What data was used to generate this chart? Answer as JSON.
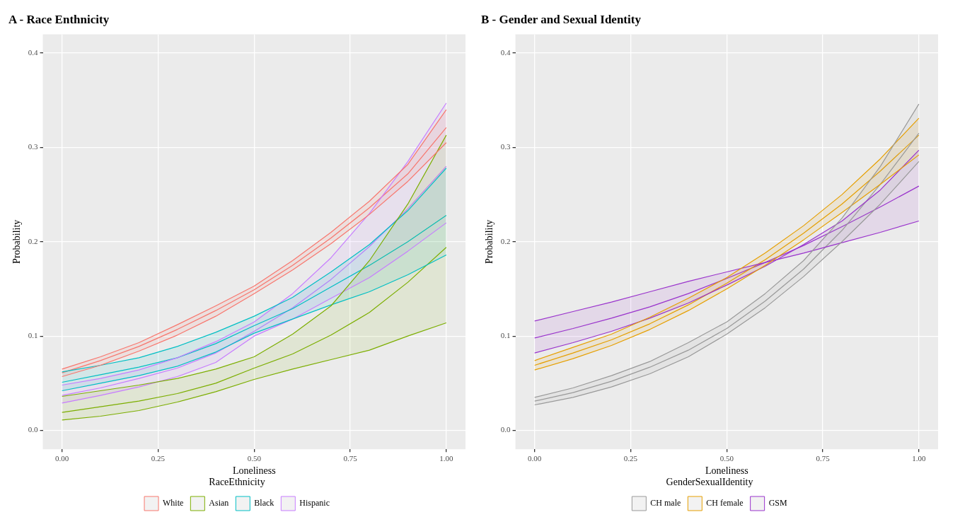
{
  "chart_data": [
    {
      "type": "line",
      "title": "A - Race Enthnicity",
      "xlabel": "Loneliness",
      "ylabel": "Probability",
      "legend_title": "RaceEthnicity",
      "legend": "bottom",
      "grid": true,
      "marker": "none",
      "line_style": "solid",
      "x": [
        0,
        0.1,
        0.2,
        0.3,
        0.4,
        0.5,
        0.6,
        0.7,
        0.8,
        0.9,
        1.0
      ],
      "xlim": [
        -0.05,
        1.05
      ],
      "xticks": [
        {
          "value": 0,
          "label": "0.00"
        },
        {
          "value": 0.25,
          "label": "0.25"
        },
        {
          "value": 0.5,
          "label": "0.50"
        },
        {
          "value": 0.75,
          "label": "0.75"
        },
        {
          "value": 1,
          "label": "1.00"
        }
      ],
      "ylim": [
        -0.02,
        0.42
      ],
      "yticks": [
        {
          "value": 0,
          "label": "0.0"
        },
        {
          "value": 0.1,
          "label": "0.1"
        },
        {
          "value": 0.2,
          "label": "0.2"
        },
        {
          "value": 0.3,
          "label": "0.3"
        },
        {
          "value": 0.4,
          "label": "0.4"
        }
      ],
      "series": [
        {
          "color": "#f8766d",
          "values": [
            0.057,
            0.069,
            0.084,
            0.101,
            0.121,
            0.145,
            0.17,
            0.198,
            0.229,
            0.264,
            0.305
          ]
        },
        {
          "color": "#f8766d",
          "values": [
            0.065,
            0.078,
            0.093,
            0.112,
            0.132,
            0.153,
            0.18,
            0.21,
            0.243,
            0.282,
            0.34
          ]
        },
        {
          "color": "#7cae00",
          "values": [
            0.011,
            0.015,
            0.021,
            0.03,
            0.041,
            0.054,
            0.065,
            0.075,
            0.085,
            0.1,
            0.114
          ]
        },
        {
          "color": "#7cae00",
          "values": [
            0.036,
            0.042,
            0.048,
            0.055,
            0.065,
            0.078,
            0.102,
            0.132,
            0.18,
            0.24,
            0.313
          ]
        },
        {
          "color": "#00bfc4",
          "values": [
            0.042,
            0.05,
            0.058,
            0.068,
            0.083,
            0.103,
            0.118,
            0.133,
            0.147,
            0.165,
            0.186
          ]
        },
        {
          "color": "#00bfc4",
          "values": [
            0.062,
            0.069,
            0.077,
            0.089,
            0.104,
            0.121,
            0.141,
            0.168,
            0.197,
            0.233,
            0.278
          ]
        },
        {
          "color": "#c77cff",
          "values": [
            0.029,
            0.037,
            0.046,
            0.057,
            0.072,
            0.1,
            0.118,
            0.14,
            0.162,
            0.19,
            0.22
          ]
        },
        {
          "color": "#c77cff",
          "values": [
            0.048,
            0.055,
            0.064,
            0.077,
            0.094,
            0.115,
            0.145,
            0.183,
            0.23,
            0.285,
            0.347
          ]
        },
        {
          "name": "White",
          "color": "#f8766d",
          "values": [
            0.061,
            0.074,
            0.089,
            0.107,
            0.127,
            0.149,
            0.175,
            0.204,
            0.236,
            0.272,
            0.321
          ],
          "lower": [
            0.057,
            0.069,
            0.084,
            0.101,
            0.121,
            0.145,
            0.17,
            0.198,
            0.229,
            0.264,
            0.305
          ],
          "upper": [
            0.065,
            0.078,
            0.093,
            0.112,
            0.132,
            0.153,
            0.18,
            0.21,
            0.243,
            0.282,
            0.34
          ]
        },
        {
          "name": "Asian",
          "color": "#7cae00",
          "values": [
            0.019,
            0.025,
            0.031,
            0.039,
            0.05,
            0.066,
            0.081,
            0.101,
            0.125,
            0.157,
            0.194
          ],
          "lower": [
            0.011,
            0.015,
            0.021,
            0.03,
            0.041,
            0.054,
            0.065,
            0.075,
            0.085,
            0.1,
            0.114
          ],
          "upper": [
            0.036,
            0.042,
            0.048,
            0.055,
            0.065,
            0.078,
            0.102,
            0.132,
            0.18,
            0.24,
            0.313
          ]
        },
        {
          "name": "Black",
          "color": "#00bfc4",
          "values": [
            0.051,
            0.059,
            0.067,
            0.077,
            0.092,
            0.111,
            0.129,
            0.152,
            0.175,
            0.2,
            0.228
          ],
          "lower": [
            0.042,
            0.05,
            0.058,
            0.068,
            0.083,
            0.103,
            0.118,
            0.133,
            0.147,
            0.165,
            0.186
          ],
          "upper": [
            0.062,
            0.069,
            0.077,
            0.089,
            0.104,
            0.121,
            0.141,
            0.168,
            0.197,
            0.233,
            0.278
          ]
        },
        {
          "name": "Hispanic",
          "color": "#c77cff",
          "values": [
            0.037,
            0.045,
            0.055,
            0.066,
            0.082,
            0.105,
            0.13,
            0.16,
            0.195,
            0.235,
            0.28
          ],
          "lower": [
            0.029,
            0.037,
            0.046,
            0.057,
            0.072,
            0.1,
            0.118,
            0.14,
            0.162,
            0.19,
            0.22
          ],
          "upper": [
            0.048,
            0.055,
            0.064,
            0.077,
            0.094,
            0.115,
            0.145,
            0.183,
            0.23,
            0.285,
            0.347
          ]
        }
      ]
    },
    {
      "type": "line",
      "title": "B - Gender and Sexual Identity",
      "xlabel": "Loneliness",
      "ylabel": "Probability",
      "legend_title": "GenderSexualIdentity",
      "legend": "bottom",
      "grid": true,
      "marker": "none",
      "line_style": "solid",
      "x": [
        0,
        0.1,
        0.2,
        0.3,
        0.4,
        0.5,
        0.6,
        0.7,
        0.8,
        0.9,
        1.0
      ],
      "xlim": [
        -0.05,
        1.05
      ],
      "xticks": [
        {
          "value": 0,
          "label": "0.00"
        },
        {
          "value": 0.25,
          "label": "0.25"
        },
        {
          "value": 0.5,
          "label": "0.50"
        },
        {
          "value": 0.75,
          "label": "0.75"
        },
        {
          "value": 1,
          "label": "1.00"
        }
      ],
      "ylim": [
        -0.02,
        0.42
      ],
      "yticks": [
        {
          "value": 0,
          "label": "0.0"
        },
        {
          "value": 0.1,
          "label": "0.1"
        },
        {
          "value": 0.2,
          "label": "0.2"
        },
        {
          "value": 0.3,
          "label": "0.3"
        },
        {
          "value": 0.4,
          "label": "0.4"
        }
      ],
      "series": [
        {
          "color": "#999999",
          "values": [
            0.027,
            0.035,
            0.046,
            0.06,
            0.078,
            0.102,
            0.13,
            0.163,
            0.2,
            0.24,
            0.285
          ]
        },
        {
          "color": "#999999",
          "values": [
            0.035,
            0.045,
            0.058,
            0.073,
            0.093,
            0.115,
            0.145,
            0.18,
            0.225,
            0.28,
            0.346
          ]
        },
        {
          "color": "#e69f00",
          "values": [
            0.064,
            0.076,
            0.09,
            0.107,
            0.127,
            0.15,
            0.175,
            0.202,
            0.231,
            0.261,
            0.292
          ]
        },
        {
          "color": "#e69f00",
          "values": [
            0.074,
            0.088,
            0.102,
            0.12,
            0.14,
            0.162,
            0.188,
            0.217,
            0.25,
            0.288,
            0.331
          ]
        },
        {
          "color": "#9932cc",
          "values": [
            0.082,
            0.093,
            0.105,
            0.119,
            0.135,
            0.154,
            0.174,
            0.197,
            0.222,
            0.255,
            0.297
          ]
        },
        {
          "color": "#9932cc",
          "values": [
            0.116,
            0.126,
            0.136,
            0.147,
            0.158,
            0.168,
            0.178,
            0.188,
            0.199,
            0.21,
            0.222
          ]
        },
        {
          "name": "CH male",
          "color": "#999999",
          "values": [
            0.031,
            0.04,
            0.052,
            0.067,
            0.085,
            0.108,
            0.137,
            0.171,
            0.212,
            0.261,
            0.315
          ],
          "lower": [
            0.027,
            0.035,
            0.046,
            0.06,
            0.078,
            0.102,
            0.13,
            0.163,
            0.2,
            0.24,
            0.285
          ],
          "upper": [
            0.035,
            0.045,
            0.058,
            0.073,
            0.093,
            0.115,
            0.145,
            0.18,
            0.225,
            0.28,
            0.346
          ]
        },
        {
          "name": "CH female",
          "color": "#e69f00",
          "values": [
            0.069,
            0.082,
            0.096,
            0.113,
            0.133,
            0.156,
            0.181,
            0.209,
            0.24,
            0.275,
            0.313
          ],
          "lower": [
            0.064,
            0.076,
            0.09,
            0.107,
            0.127,
            0.15,
            0.175,
            0.202,
            0.231,
            0.261,
            0.292
          ],
          "upper": [
            0.074,
            0.088,
            0.102,
            0.12,
            0.14,
            0.162,
            0.188,
            0.217,
            0.25,
            0.288,
            0.331
          ]
        },
        {
          "name": "GSM",
          "color": "#9932cc",
          "values": [
            0.098,
            0.108,
            0.119,
            0.131,
            0.145,
            0.161,
            0.178,
            0.196,
            0.216,
            0.237,
            0.259
          ],
          "lower": [
            0.082,
            0.093,
            0.105,
            0.119,
            0.135,
            0.154,
            0.174,
            0.197,
            0.222,
            0.255,
            0.297
          ],
          "upper": [
            0.116,
            0.126,
            0.136,
            0.147,
            0.158,
            0.168,
            0.178,
            0.188,
            0.199,
            0.21,
            0.222
          ]
        }
      ]
    }
  ]
}
